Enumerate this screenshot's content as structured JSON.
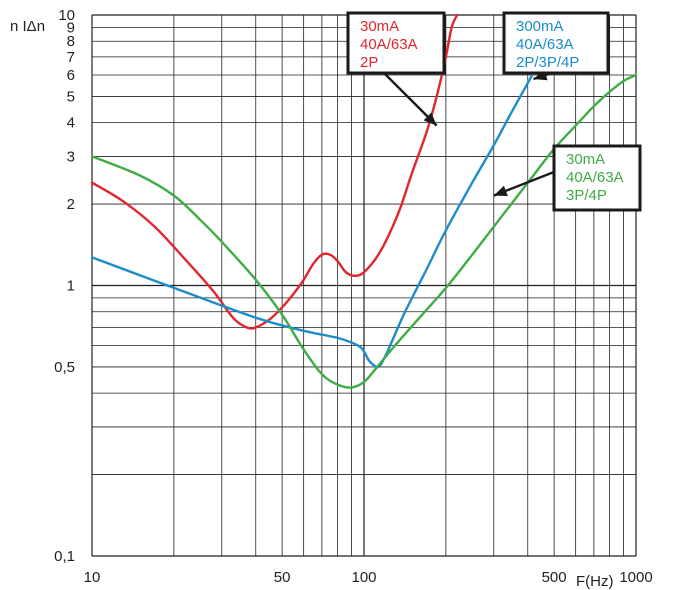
{
  "chart_data": {
    "type": "line",
    "title": "",
    "xlabel": "F(Hz)",
    "ylabel": "n IΔn",
    "x_scale": "log",
    "y_scale": "log",
    "xlim": [
      10,
      1000
    ],
    "ylim": [
      0.1,
      10
    ],
    "grid": true,
    "x_ticks": [
      {
        "value": 10,
        "label": "10"
      },
      {
        "value": 50,
        "label": "50"
      },
      {
        "value": 100,
        "label": "100"
      },
      {
        "value": 500,
        "label": "500"
      },
      {
        "value": 1000,
        "label": "1000"
      }
    ],
    "y_ticks": [
      {
        "value": 0.1,
        "label": "0,1"
      },
      {
        "value": 0.5,
        "label": "0,5"
      },
      {
        "value": 1,
        "label": "1"
      },
      {
        "value": 2,
        "label": "2"
      },
      {
        "value": 3,
        "label": "3"
      },
      {
        "value": 4,
        "label": "4"
      },
      {
        "value": 5,
        "label": "5"
      },
      {
        "value": 6,
        "label": "6"
      },
      {
        "value": 7,
        "label": "7"
      },
      {
        "value": 8,
        "label": "8"
      },
      {
        "value": 9,
        "label": "9"
      },
      {
        "value": 10,
        "label": "10"
      }
    ],
    "series": [
      {
        "color": "#e0262e",
        "points": [
          [
            10,
            2.4
          ],
          [
            13,
            2.05
          ],
          [
            17,
            1.65
          ],
          [
            22,
            1.25
          ],
          [
            28,
            0.95
          ],
          [
            33,
            0.76
          ],
          [
            37,
            0.7
          ],
          [
            40,
            0.7
          ],
          [
            45,
            0.75
          ],
          [
            50,
            0.83
          ],
          [
            55,
            0.93
          ],
          [
            60,
            1.05
          ],
          [
            65,
            1.2
          ],
          [
            70,
            1.3
          ],
          [
            75,
            1.3
          ],
          [
            80,
            1.23
          ],
          [
            85,
            1.13
          ],
          [
            90,
            1.09
          ],
          [
            95,
            1.09
          ],
          [
            100,
            1.12
          ],
          [
            110,
            1.25
          ],
          [
            120,
            1.45
          ],
          [
            135,
            1.9
          ],
          [
            150,
            2.6
          ],
          [
            170,
            3.7
          ],
          [
            185,
            5.0
          ],
          [
            200,
            7.0
          ],
          [
            210,
            9.0
          ],
          [
            220,
            10.0
          ]
        ]
      },
      {
        "color": "#1b8dc8",
        "points": [
          [
            10,
            1.27
          ],
          [
            20,
            0.98
          ],
          [
            40,
            0.76
          ],
          [
            60,
            0.68
          ],
          [
            80,
            0.64
          ],
          [
            95,
            0.6
          ],
          [
            100,
            0.57
          ],
          [
            104,
            0.53
          ],
          [
            108,
            0.51
          ],
          [
            113,
            0.5
          ],
          [
            120,
            0.55
          ],
          [
            140,
            0.78
          ],
          [
            170,
            1.15
          ],
          [
            200,
            1.6
          ],
          [
            250,
            2.4
          ],
          [
            300,
            3.3
          ],
          [
            350,
            4.4
          ],
          [
            400,
            5.6
          ],
          [
            430,
            6.4
          ]
        ]
      },
      {
        "color": "#3fac47",
        "points": [
          [
            10,
            3.0
          ],
          [
            15,
            2.55
          ],
          [
            20,
            2.15
          ],
          [
            25,
            1.75
          ],
          [
            30,
            1.45
          ],
          [
            40,
            1.05
          ],
          [
            50,
            0.78
          ],
          [
            60,
            0.58
          ],
          [
            70,
            0.47
          ],
          [
            80,
            0.43
          ],
          [
            90,
            0.42
          ],
          [
            100,
            0.44
          ],
          [
            110,
            0.49
          ],
          [
            130,
            0.6
          ],
          [
            160,
            0.76
          ],
          [
            200,
            0.98
          ],
          [
            250,
            1.3
          ],
          [
            300,
            1.65
          ],
          [
            400,
            2.4
          ],
          [
            500,
            3.2
          ],
          [
            600,
            3.9
          ],
          [
            700,
            4.6
          ],
          [
            800,
            5.2
          ],
          [
            900,
            5.7
          ],
          [
            1000,
            6.0
          ]
        ]
      }
    ],
    "annotations": [
      {
        "lines": [
          "30mA",
          "40A/63A",
          "2P"
        ],
        "color": "#e0262e",
        "arrow_to": [
          185,
          3.9
        ]
      },
      {
        "lines": [
          "300mA",
          "40A/63A",
          "2P/3P/4P"
        ],
        "color": "#1b8dc8",
        "arrow_to": [
          420,
          5.8
        ]
      },
      {
        "lines": [
          "30mA",
          "40A/63A",
          "3P/4P"
        ],
        "color": "#3fac47",
        "arrow_to": [
          300,
          2.15
        ]
      }
    ]
  }
}
